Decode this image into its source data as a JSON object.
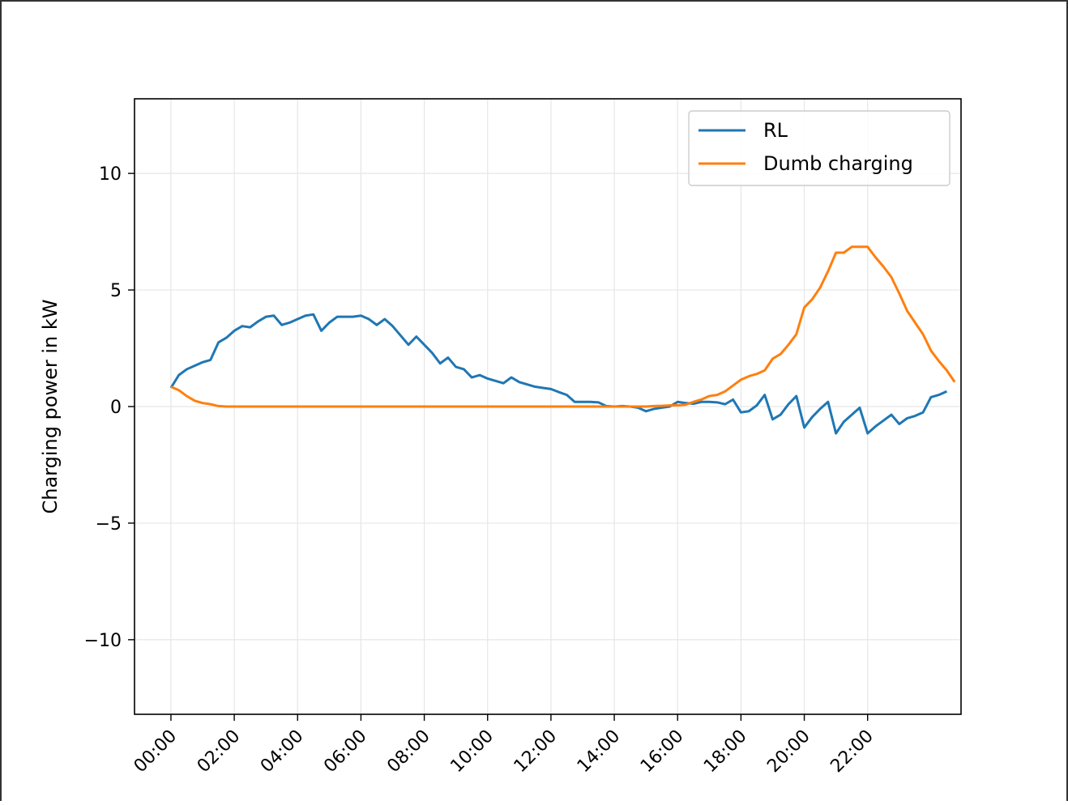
{
  "chart_data": {
    "type": "line",
    "title": "",
    "xlabel": "",
    "ylabel": "Charging power in kW",
    "ylim": [
      -13.2,
      13.2
    ],
    "xlim_hours": [
      -1.15,
      24.95
    ],
    "y_ticks": [
      -10,
      -5,
      0,
      5,
      10
    ],
    "y_tick_labels": [
      "−10",
      "−5",
      "0",
      "5",
      "10"
    ],
    "x_ticks_hours": [
      0,
      2,
      4,
      6,
      8,
      10,
      12,
      14,
      16,
      18,
      20,
      22
    ],
    "x_tick_labels": [
      "00:00",
      "02:00",
      "04:00",
      "06:00",
      "08:00",
      "10:00",
      "12:00",
      "14:00",
      "16:00",
      "18:00",
      "20:00",
      "22:00"
    ],
    "grid": true,
    "legend_position": "top-right",
    "interval_minutes": 15,
    "x_start_time": "00:00",
    "series": [
      {
        "name": "RL",
        "color": "#1f77b4",
        "values": [
          0.8,
          1.35,
          1.6,
          1.75,
          1.9,
          2.0,
          2.75,
          2.95,
          3.25,
          3.45,
          3.4,
          3.65,
          3.85,
          3.9,
          3.5,
          3.6,
          3.75,
          3.9,
          3.95,
          3.25,
          3.6,
          3.85,
          3.85,
          3.85,
          3.9,
          3.75,
          3.5,
          3.75,
          3.45,
          3.05,
          2.65,
          3.0,
          2.65,
          2.3,
          1.85,
          2.1,
          1.7,
          1.6,
          1.25,
          1.35,
          1.2,
          1.1,
          1.0,
          1.25,
          1.05,
          0.95,
          0.85,
          0.8,
          0.75,
          0.62,
          0.5,
          0.2,
          0.2,
          0.2,
          0.18,
          0.02,
          0.0,
          0.02,
          0.0,
          -0.05,
          -0.2,
          -0.1,
          -0.05,
          0.0,
          0.2,
          0.15,
          0.12,
          0.2,
          0.2,
          0.18,
          0.1,
          0.3,
          -0.25,
          -0.2,
          0.05,
          0.5,
          -0.55,
          -0.35,
          0.1,
          0.45,
          -0.9,
          -0.45,
          -0.1,
          0.2,
          -1.15,
          -0.65,
          -0.35,
          -0.05,
          -1.15,
          -0.85,
          -0.6,
          -0.35,
          -0.75,
          -0.5,
          -0.4,
          -0.25,
          0.4,
          0.5,
          0.65
        ]
      },
      {
        "name": "Dumb charging",
        "color": "#ff7f0e",
        "values": [
          0.85,
          0.7,
          0.45,
          0.25,
          0.15,
          0.1,
          0.02,
          0.0,
          0.0,
          0.0,
          0.0,
          0.0,
          0.0,
          0.0,
          0.0,
          0.0,
          0.0,
          0.0,
          0.0,
          0.0,
          0.0,
          0.0,
          0.0,
          0.0,
          0.0,
          0.0,
          0.0,
          0.0,
          0.0,
          0.0,
          0.0,
          0.0,
          0.0,
          0.0,
          0.0,
          0.0,
          0.0,
          0.0,
          0.0,
          0.0,
          0.0,
          0.0,
          0.0,
          0.0,
          0.0,
          0.0,
          0.0,
          0.0,
          0.0,
          0.0,
          0.0,
          0.0,
          0.0,
          0.0,
          0.0,
          0.0,
          0.0,
          0.0,
          0.0,
          0.0,
          0.0,
          0.02,
          0.03,
          0.05,
          0.05,
          0.08,
          0.2,
          0.3,
          0.45,
          0.5,
          0.65,
          0.9,
          1.15,
          1.3,
          1.4,
          1.55,
          2.05,
          2.25,
          2.65,
          3.1,
          4.25,
          4.6,
          5.1,
          5.8,
          6.6,
          6.6,
          6.85,
          6.85,
          6.85,
          6.4,
          6.0,
          5.55,
          4.85,
          4.1,
          3.6,
          3.1,
          2.4,
          1.95,
          1.55,
          1.05
        ]
      }
    ]
  }
}
